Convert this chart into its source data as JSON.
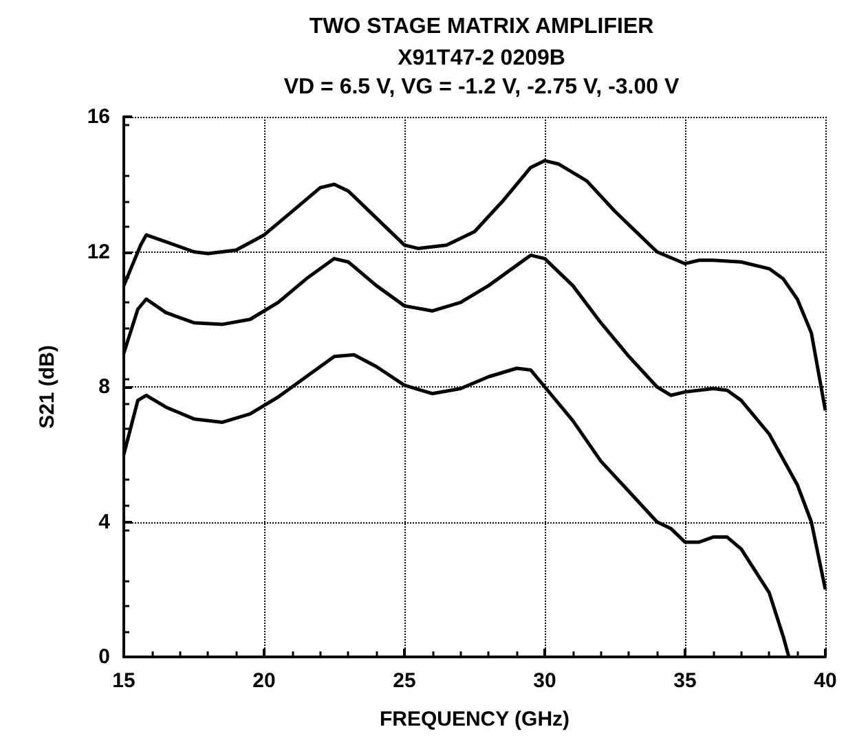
{
  "chart_data": {
    "type": "line",
    "title": "TWO STAGE MATRIX AMPLIFIER",
    "subtitle": "X91T47-2 0209B\nVD = 6.5 V, VG = -1.2 V, -2.75 V, -3.00 V",
    "xlabel": "FREQUENCY (GHz)",
    "ylabel": "S21 (dB)",
    "xlim": [
      15,
      40
    ],
    "xticks": [
      15,
      20,
      25,
      30,
      35,
      40
    ],
    "ylim": [
      0,
      16
    ],
    "yticks": [
      0,
      4,
      8,
      12,
      16
    ],
    "grid": true,
    "marker": "none",
    "line_style": "solid",
    "series": [
      {
        "color": "#000000",
        "x": [
          15,
          15.6,
          15.8,
          16.5,
          17.5,
          18,
          19,
          20,
          21,
          22,
          22.5,
          23,
          24,
          25,
          25.5,
          26.5,
          27.5,
          28.5,
          29.5,
          30,
          30.5,
          31.5,
          32.5,
          33.5,
          34,
          35,
          35.5,
          36,
          37,
          38,
          38.5,
          39,
          39.5,
          40
        ],
        "values": [
          11,
          12.2,
          12.5,
          12.3,
          12.0,
          11.95,
          12.05,
          12.5,
          13.2,
          13.9,
          14.0,
          13.8,
          13.0,
          12.2,
          12.1,
          12.2,
          12.6,
          13.5,
          14.5,
          14.7,
          14.6,
          14.1,
          13.2,
          12.4,
          12.0,
          11.65,
          11.75,
          11.75,
          11.7,
          11.5,
          11.2,
          10.6,
          9.6,
          7.3
        ]
      },
      {
        "color": "#000000",
        "x": [
          15,
          15.5,
          15.8,
          16.5,
          17.5,
          18.5,
          19.5,
          20.5,
          21.5,
          22.5,
          23,
          24,
          25,
          26,
          27,
          28,
          29,
          29.5,
          30,
          31,
          32,
          33,
          34,
          34.5,
          35,
          36,
          36.5,
          37,
          38,
          39,
          39.5,
          40
        ],
        "values": [
          9.0,
          10.3,
          10.6,
          10.2,
          9.9,
          9.85,
          10.0,
          10.5,
          11.2,
          11.8,
          11.7,
          11.0,
          10.4,
          10.25,
          10.5,
          11.0,
          11.6,
          11.9,
          11.8,
          11.0,
          9.9,
          8.9,
          8.0,
          7.75,
          7.85,
          7.95,
          7.9,
          7.6,
          6.6,
          5.1,
          4.0,
          2.0
        ]
      },
      {
        "color": "#000000",
        "x": [
          15,
          15.5,
          15.8,
          16.5,
          17.5,
          18.5,
          19.5,
          20.5,
          21.5,
          22.5,
          23.2,
          24,
          25,
          26,
          27,
          28,
          29,
          29.5,
          30,
          31,
          32,
          33,
          34,
          34.5,
          35,
          35.5,
          36,
          36.5,
          37,
          38,
          38.5,
          38.7
        ],
        "values": [
          6.0,
          7.6,
          7.75,
          7.4,
          7.05,
          6.95,
          7.2,
          7.7,
          8.3,
          8.9,
          8.95,
          8.6,
          8.05,
          7.8,
          7.95,
          8.3,
          8.55,
          8.5,
          8.0,
          7.0,
          5.8,
          4.9,
          4.0,
          3.8,
          3.4,
          3.4,
          3.55,
          3.55,
          3.2,
          1.9,
          0.6,
          0
        ]
      }
    ]
  }
}
